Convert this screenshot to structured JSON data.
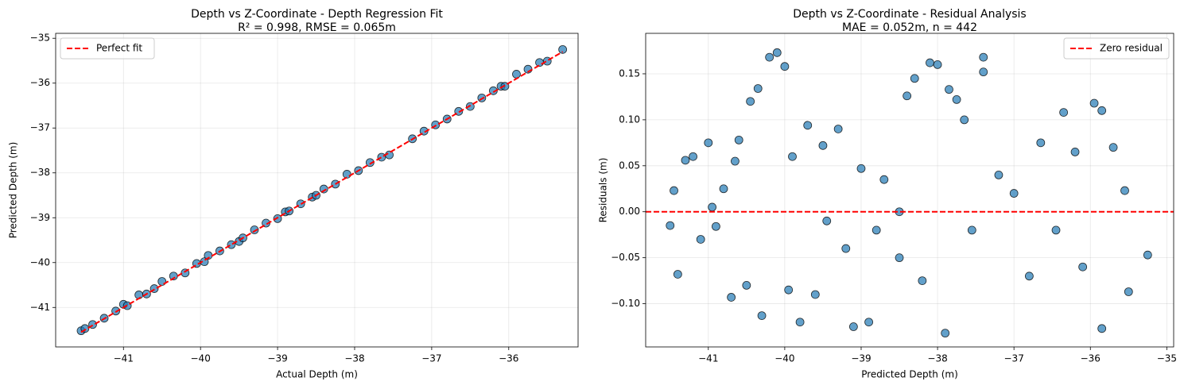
{
  "chart_data": [
    {
      "type": "scatter",
      "title": "Depth vs Z-Coordinate - Depth Regression Fit",
      "subtitle": "R² = 0.998, RMSE = 0.065m",
      "x_label": "Actual Depth (m)",
      "y_label": "Predicted Depth (m)",
      "xlim": [
        -41.88,
        -35.1
      ],
      "ylim": [
        -41.88,
        -34.89
      ],
      "xticks": [
        {
          "value": -41,
          "label": "−41"
        },
        {
          "value": -40,
          "label": "−40"
        },
        {
          "value": -39,
          "label": "−39"
        },
        {
          "value": -38,
          "label": "−38"
        },
        {
          "value": -37,
          "label": "−37"
        },
        {
          "value": -36,
          "label": "−36"
        }
      ],
      "yticks": [
        {
          "value": -41,
          "label": "−41"
        },
        {
          "value": -40,
          "label": "−40"
        },
        {
          "value": -39,
          "label": "−39"
        },
        {
          "value": -38,
          "label": "−38"
        },
        {
          "value": -37,
          "label": "−37"
        },
        {
          "value": -36,
          "label": "−36"
        },
        {
          "value": -35,
          "label": "−35"
        }
      ],
      "grid": true,
      "legend": "upper left",
      "series": [
        {
          "color": "#1f77b4",
          "x": [
            -41.55,
            -41.5,
            -41.4,
            -41.25,
            -41.1,
            -41.0,
            -40.95,
            -40.8,
            -40.7,
            -40.6,
            -40.5,
            -40.35,
            -40.2,
            -40.05,
            -39.95,
            -39.9,
            -39.75,
            -39.6,
            -39.5,
            -39.45,
            -39.3,
            -39.15,
            -39.0,
            -38.9,
            -38.85,
            -38.7,
            -38.55,
            -38.5,
            -38.4,
            -38.25,
            -38.1,
            -37.95,
            -37.8,
            -37.65,
            -37.55,
            -37.25,
            -37.1,
            -36.95,
            -36.8,
            -36.65,
            -36.5,
            -36.35,
            -36.2,
            -36.1,
            -36.05,
            -35.9,
            -35.75,
            -35.6,
            -35.5,
            -35.3
          ],
          "values": [
            -41.52,
            -41.47,
            -41.38,
            -41.24,
            -41.08,
            -40.93,
            -40.96,
            -40.72,
            -40.7,
            -40.58,
            -40.42,
            -40.3,
            -40.23,
            -40.02,
            -39.98,
            -39.84,
            -39.74,
            -39.6,
            -39.53,
            -39.45,
            -39.27,
            -39.12,
            -39.02,
            -38.87,
            -38.85,
            -38.69,
            -38.54,
            -38.5,
            -38.36,
            -38.25,
            -38.03,
            -37.95,
            -37.77,
            -37.65,
            -37.6,
            -37.24,
            -37.07,
            -36.93,
            -36.8,
            -36.63,
            -36.52,
            -36.33,
            -36.17,
            -36.07,
            -36.07,
            -35.8,
            -35.69,
            -35.54,
            -35.51,
            -35.25
          ]
        }
      ],
      "lines": [
        {
          "name": "Perfect fit",
          "color": "#ff0000",
          "x": [
            -41.55,
            -35.3
          ],
          "values": [
            -41.55,
            -35.3
          ]
        }
      ]
    },
    {
      "type": "scatter",
      "title": "Depth vs Z-Coordinate - Residual Analysis",
      "subtitle": "MAE = 0.052m, n = 442",
      "x_label": "Predicted Depth (m)",
      "y_label": "Residuals (m)",
      "xlim": [
        -41.82,
        -34.91
      ],
      "ylim": [
        -0.147,
        0.194
      ],
      "xticks": [
        {
          "value": -41,
          "label": "−41"
        },
        {
          "value": -40,
          "label": "−40"
        },
        {
          "value": -39,
          "label": "−39"
        },
        {
          "value": -38,
          "label": "−38"
        },
        {
          "value": -37,
          "label": "−37"
        },
        {
          "value": -36,
          "label": "−36"
        },
        {
          "value": -35,
          "label": "−35"
        }
      ],
      "yticks": [
        {
          "value": -0.1,
          "label": "−0.10"
        },
        {
          "value": -0.05,
          "label": "−0.05"
        },
        {
          "value": 0,
          "label": "0.00"
        },
        0.05,
        {
          "value": 0.1,
          "label": "0.10"
        },
        0.15
      ],
      "grid": true,
      "legend": "upper right",
      "series": [
        {
          "color": "#1f77b4",
          "x": [
            -41.5,
            -41.45,
            -41.4,
            -41.3,
            -41.2,
            -41.1,
            -41.0,
            -40.95,
            -40.9,
            -40.8,
            -40.7,
            -40.65,
            -40.6,
            -40.5,
            -40.45,
            -40.35,
            -40.3,
            -40.2,
            -40.1,
            -40.0,
            -39.95,
            -39.9,
            -39.8,
            -39.7,
            -39.6,
            -39.5,
            -39.45,
            -39.3,
            -39.2,
            -39.1,
            -39.0,
            -38.9,
            -38.8,
            -38.7,
            -38.5,
            -38.5,
            -38.4,
            -38.3,
            -38.2,
            -38.1,
            -38.0,
            -37.9,
            -37.85,
            -37.75,
            -37.65,
            -37.55,
            -37.4,
            -37.4,
            -37.2,
            -37.0,
            -36.8,
            -36.65,
            -36.45,
            -36.35,
            -36.2,
            -36.1,
            -35.95,
            -35.85,
            -35.85,
            -35.7,
            -35.55,
            -35.5,
            -35.25
          ],
          "values": [
            -0.015,
            0.023,
            -0.068,
            0.056,
            0.06,
            -0.03,
            0.075,
            0.005,
            -0.016,
            0.025,
            -0.093,
            0.055,
            0.078,
            -0.08,
            0.12,
            0.134,
            -0.113,
            0.168,
            0.173,
            0.158,
            -0.085,
            0.06,
            -0.12,
            0.094,
            -0.09,
            0.072,
            -0.01,
            0.09,
            -0.04,
            -0.125,
            0.047,
            -0.12,
            -0.02,
            0.035,
            0.0,
            -0.05,
            0.126,
            0.145,
            -0.075,
            0.162,
            0.16,
            -0.132,
            0.133,
            0.122,
            0.1,
            -0.02,
            0.168,
            0.152,
            0.04,
            0.02,
            -0.07,
            0.075,
            -0.02,
            0.108,
            0.065,
            -0.06,
            0.118,
            0.11,
            -0.127,
            0.07,
            0.023,
            -0.087,
            -0.047
          ]
        }
      ],
      "hlines": [
        {
          "name": "Zero residual",
          "color": "#ff0000",
          "value": 0
        }
      ]
    }
  ]
}
